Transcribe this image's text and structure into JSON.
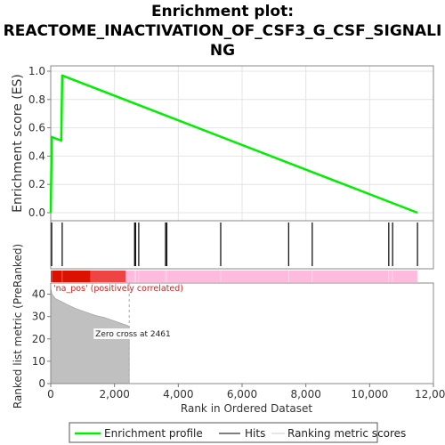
{
  "title_lines": [
    "Enrichment plot:",
    "REACTOME_INACTIVATION_OF_CSF3_G_CSF_SIGNALI",
    "NG"
  ],
  "chart_data": {
    "type": "line",
    "colors": {
      "enrichment": "#00ee00",
      "hits": "#000000",
      "metric_fill": "#c0c0c0",
      "pos_dark": "#dd1100",
      "pos_mid": "#ee4444",
      "pos_light": "#ffbbdd",
      "annotation": "#cc2222"
    },
    "xlabel": "Rank in Ordered Dataset",
    "xlim": [
      0,
      12000
    ],
    "xticks": [
      0,
      2000,
      4000,
      6000,
      8000,
      10000,
      12000
    ],
    "xtick_labels": [
      "0",
      "2,000",
      "4,000",
      "6,000",
      "8,000",
      "10,000",
      "12,000"
    ],
    "es_panel": {
      "ylabel": "Enrichment score (ES)",
      "ylim": [
        0,
        1.0
      ],
      "yticks": [
        0.0,
        0.2,
        0.4,
        0.6,
        0.8,
        1.0
      ],
      "ytick_labels": [
        "0.0",
        "0.2",
        "0.4",
        "0.6",
        "0.8",
        "1.0"
      ],
      "grid": true,
      "points": [
        [
          0,
          0.0
        ],
        [
          30,
          0.535
        ],
        [
          330,
          0.51
        ],
        [
          360,
          0.97
        ],
        [
          11500,
          0.0
        ]
      ]
    },
    "hits": [
      30,
      360,
      2630,
      2660,
      2760,
      3600,
      3640,
      5330,
      7460,
      8200,
      10600,
      10720,
      11500
    ],
    "rank_bar": {
      "max_rank": 11500,
      "segments": [
        [
          0,
          1250,
          "pos_dark"
        ],
        [
          1250,
          2350,
          "pos_mid"
        ],
        [
          2350,
          11500,
          "pos_light"
        ]
      ]
    },
    "metric_panel": {
      "ylabel": "Ranked list metric (PreRanked)",
      "ylim": [
        0,
        45
      ],
      "yticks": [
        0,
        10,
        20,
        30,
        40
      ],
      "ytick_labels": [
        "0",
        "10",
        "20",
        "30",
        "40"
      ],
      "curve": [
        [
          0,
          43
        ],
        [
          40,
          40
        ],
        [
          150,
          38
        ],
        [
          300,
          37
        ],
        [
          500,
          35.5
        ],
        [
          800,
          33.5
        ],
        [
          1100,
          32
        ],
        [
          1400,
          30.5
        ],
        [
          1700,
          29.5
        ],
        [
          2000,
          28
        ],
        [
          2200,
          27
        ],
        [
          2400,
          26
        ],
        [
          2461,
          25.5
        ],
        [
          2461,
          0
        ]
      ],
      "zero_cross_label": "Zero cross at 2461",
      "zero_cross_x": 2461,
      "annotation_label": "'na_pos' (positively correlated)"
    },
    "legend": {
      "position": "bottom",
      "items": [
        {
          "name": "Enrichment profile",
          "marker": "green-line"
        },
        {
          "name": "Hits",
          "marker": "black-tick"
        },
        {
          "name": "Ranking metric scores",
          "marker": "gray-line"
        }
      ]
    }
  }
}
